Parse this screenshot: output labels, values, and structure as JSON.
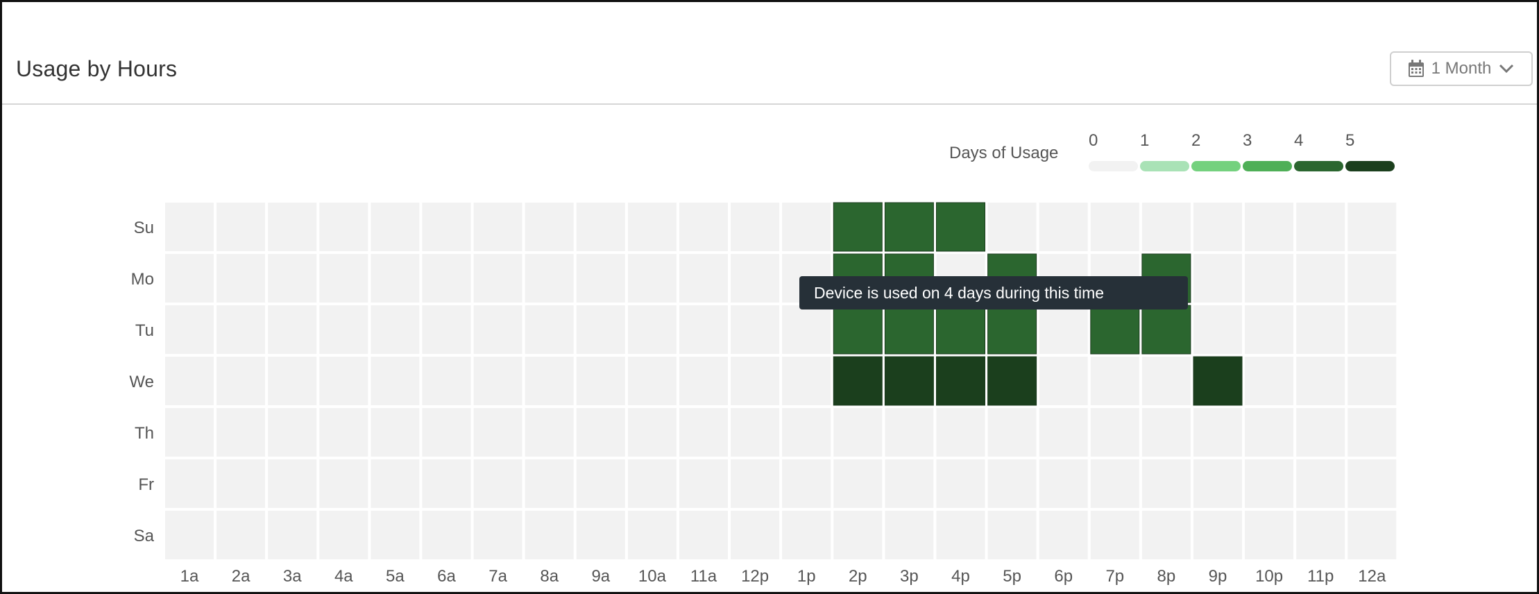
{
  "header": {
    "title": "Usage by Hours",
    "period_label": "1 Month",
    "period_icon": "calendar-icon",
    "dropdown_icon": "chevron-down-icon"
  },
  "legend": {
    "title": "Days of Usage",
    "levels": [
      "0",
      "1",
      "2",
      "3",
      "4",
      "5"
    ],
    "colors": [
      "#f2f2f2",
      "#a9e2b6",
      "#74d17e",
      "#4faf57",
      "#2b662f",
      "#1b3f1d"
    ]
  },
  "tooltip": {
    "text": "Device is used on 4 days during this time"
  },
  "chart_data": {
    "type": "heatmap",
    "title": "Usage by Hours",
    "legend_title": "Days of Usage",
    "y": [
      "Su",
      "Mo",
      "Tu",
      "We",
      "Th",
      "Fr",
      "Sa"
    ],
    "x": [
      "1a",
      "2a",
      "3a",
      "4a",
      "5a",
      "6a",
      "7a",
      "8a",
      "9a",
      "10a",
      "11a",
      "12p",
      "1p",
      "2p",
      "3p",
      "4p",
      "5p",
      "6p",
      "7p",
      "8p",
      "9p",
      "10p",
      "11p",
      "12a"
    ],
    "values": [
      [
        0,
        0,
        0,
        0,
        0,
        0,
        0,
        0,
        0,
        0,
        0,
        0,
        0,
        4,
        4,
        4,
        0,
        0,
        0,
        0,
        0,
        0,
        0,
        0
      ],
      [
        0,
        0,
        0,
        0,
        0,
        0,
        0,
        0,
        0,
        0,
        0,
        0,
        0,
        4,
        4,
        0,
        4,
        0,
        0,
        4,
        0,
        0,
        0,
        0
      ],
      [
        0,
        0,
        0,
        0,
        0,
        0,
        0,
        0,
        0,
        0,
        0,
        0,
        0,
        4,
        4,
        4,
        4,
        0,
        4,
        4,
        0,
        0,
        0,
        0
      ],
      [
        0,
        0,
        0,
        0,
        0,
        0,
        0,
        0,
        0,
        0,
        0,
        0,
        0,
        5,
        5,
        5,
        5,
        0,
        0,
        0,
        5,
        0,
        0,
        0
      ],
      [
        0,
        0,
        0,
        0,
        0,
        0,
        0,
        0,
        0,
        0,
        0,
        0,
        0,
        0,
        0,
        0,
        0,
        0,
        0,
        0,
        0,
        0,
        0,
        0
      ],
      [
        0,
        0,
        0,
        0,
        0,
        0,
        0,
        0,
        0,
        0,
        0,
        0,
        0,
        0,
        0,
        0,
        0,
        0,
        0,
        0,
        0,
        0,
        0,
        0
      ],
      [
        0,
        0,
        0,
        0,
        0,
        0,
        0,
        0,
        0,
        0,
        0,
        0,
        0,
        0,
        0,
        0,
        0,
        0,
        0,
        0,
        0,
        0,
        0,
        0
      ]
    ],
    "value_range": [
      0,
      5
    ]
  }
}
